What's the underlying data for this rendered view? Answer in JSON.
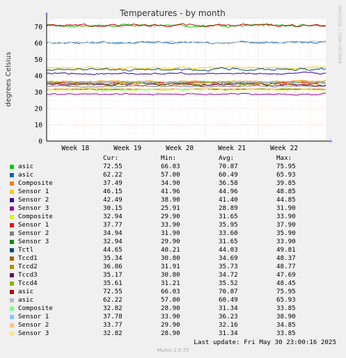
{
  "chart_data": {
    "type": "line",
    "title": "Temperatures - by month",
    "ylabel": "degrees Celsius",
    "watermark": "RRDTOOL / TOBI OETIKER",
    "ylim": [
      0,
      75
    ],
    "yticks": [
      0,
      10,
      20,
      30,
      40,
      50,
      60,
      70
    ],
    "xticks": [
      "Week 18",
      "Week 19",
      "Week 20",
      "Week 21",
      "Week 22"
    ],
    "grid": true,
    "legend_placement": "bottom",
    "columns": [
      "Cur:",
      "Min:",
      "Avg:",
      "Max:"
    ],
    "series": [
      {
        "name": "asic",
        "color": "#00cc00",
        "cur": "72.55",
        "min": "66.03",
        "avg": "70.87",
        "max": "75.95"
      },
      {
        "name": "asic",
        "color": "#0066b3",
        "cur": "62.22",
        "min": "57.00",
        "avg": "60.49",
        "max": "65.93"
      },
      {
        "name": "Composite",
        "color": "#ff8000",
        "cur": "37.49",
        "min": "34.90",
        "avg": "36.58",
        "max": "39.85"
      },
      {
        "name": "Sensor 1",
        "color": "#ffcc00",
        "cur": "46.15",
        "min": "41.96",
        "avg": "44.96",
        "max": "48.85"
      },
      {
        "name": "Sensor 2",
        "color": "#330099",
        "cur": "42.49",
        "min": "38.90",
        "avg": "41.40",
        "max": "44.85"
      },
      {
        "name": "Sensor 3",
        "color": "#990099",
        "cur": "30.15",
        "min": "25.91",
        "avg": "28.89",
        "max": "31.90"
      },
      {
        "name": "Composite",
        "color": "#ccff00",
        "cur": "32.94",
        "min": "29.90",
        "avg": "31.65",
        "max": "33.90"
      },
      {
        "name": "Sensor 1",
        "color": "#ff0000",
        "cur": "37.77",
        "min": "33.90",
        "avg": "35.95",
        "max": "37.90"
      },
      {
        "name": "Sensor 2",
        "color": "#808080",
        "cur": "34.94",
        "min": "31.90",
        "avg": "33.60",
        "max": "35.90"
      },
      {
        "name": "Sensor 3",
        "color": "#008f00",
        "cur": "32.94",
        "min": "29.90",
        "avg": "31.65",
        "max": "33.90"
      },
      {
        "name": "Tctl",
        "color": "#00487d",
        "cur": "44.65",
        "min": "40.21",
        "avg": "44.03",
        "max": "49.81"
      },
      {
        "name": "Tccd1",
        "color": "#b35a00",
        "cur": "35.34",
        "min": "30.80",
        "avg": "34.69",
        "max": "48.37"
      },
      {
        "name": "Tccd2",
        "color": "#b38f00",
        "cur": "36.86",
        "min": "31.91",
        "avg": "35.73",
        "max": "48.77"
      },
      {
        "name": "Tccd3",
        "color": "#6b006b",
        "cur": "35.17",
        "min": "30.80",
        "avg": "34.72",
        "max": "47.69"
      },
      {
        "name": "Tccd4",
        "color": "#8fb300",
        "cur": "35.61",
        "min": "31.21",
        "avg": "35.52",
        "max": "48.45"
      },
      {
        "name": "asic",
        "color": "#b30000",
        "cur": "72.55",
        "min": "66.03",
        "avg": "70.87",
        "max": "75.95"
      },
      {
        "name": "asic",
        "color": "#bebebe",
        "cur": "62.22",
        "min": "57.00",
        "avg": "60.49",
        "max": "65.93"
      },
      {
        "name": "Composite",
        "color": "#80ff80",
        "cur": "32.82",
        "min": "28.90",
        "avg": "31.34",
        "max": "33.85"
      },
      {
        "name": "Sensor 1",
        "color": "#80c9ff",
        "cur": "37.78",
        "min": "33.90",
        "avg": "36.23",
        "max": "38.90"
      },
      {
        "name": "Sensor 2",
        "color": "#ffc080",
        "cur": "33.77",
        "min": "29.90",
        "avg": "32.16",
        "max": "34.85"
      },
      {
        "name": "Sensor 3",
        "color": "#ffe680",
        "cur": "32.82",
        "min": "28.90",
        "avg": "31.34",
        "max": "33.85"
      }
    ]
  },
  "footer": {
    "last_update": "Last update: Fri May 30 23:00:16 2025",
    "version": "Munin 2.0.75"
  }
}
